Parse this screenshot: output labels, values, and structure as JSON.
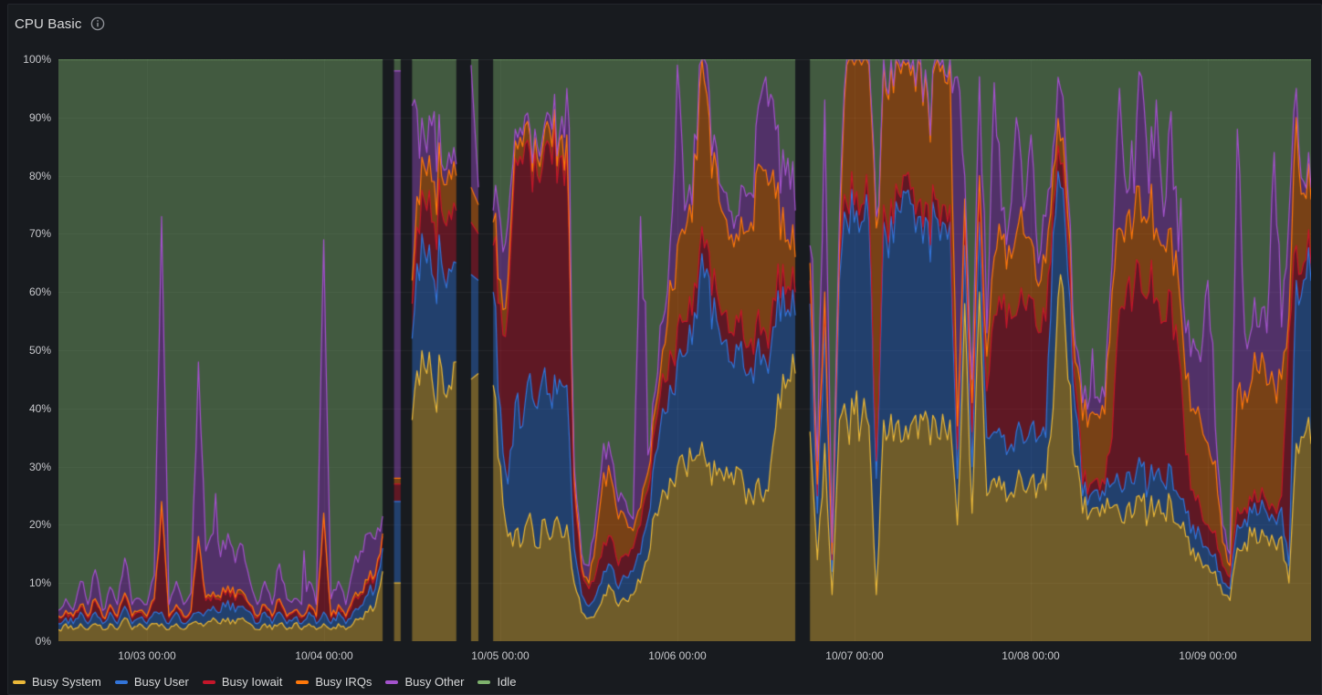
{
  "panel": {
    "title": "CPU Basic"
  },
  "colors": {
    "page_bg": "#111217",
    "panel_bg": "#181B1F",
    "panel_border": "#23262C",
    "plot_bg": "#181B1F",
    "grid": "rgba(204,204,220,0.07)",
    "axis_text": "#C7C8CC",
    "title_text": "#D8D9DA",
    "icon": "#8E9197"
  },
  "axes": {
    "y_ticks": [
      "0%",
      "10%",
      "20%",
      "30%",
      "40%",
      "50%",
      "60%",
      "70%",
      "80%",
      "90%",
      "100%"
    ],
    "x_ticks": [
      "10/03 00:00",
      "10/04 00:00",
      "10/05 00:00",
      "10/06 00:00",
      "10/07 00:00",
      "10/08 00:00",
      "10/09 00:00"
    ]
  },
  "legend": [
    {
      "label": "Busy System",
      "color": "#EAB839"
    },
    {
      "label": "Busy User",
      "color": "#3274D9"
    },
    {
      "label": "Busy Iowait",
      "color": "#C4162A"
    },
    {
      "label": "Busy IRQs",
      "color": "#FF780A"
    },
    {
      "label": "Busy Other",
      "color": "#A352CC"
    },
    {
      "label": "Idle",
      "color": "#7EB26D"
    }
  ],
  "chart_data": {
    "type": "area",
    "stacked": true,
    "unit": "percent",
    "ylim": [
      0,
      100
    ],
    "grid": true,
    "legend_position": "bottom",
    "x_unit": "hours_from_left_edge",
    "x_range": [
      0,
      170
    ],
    "x_tick_hours": [
      12,
      36,
      60,
      84,
      108,
      132,
      156
    ],
    "x_tick_labels": [
      "10/03 00:00",
      "10/04 00:00",
      "10/05 00:00",
      "10/06 00:00",
      "10/07 00:00",
      "10/08 00:00",
      "10/09 00:00"
    ],
    "series_names": [
      "Busy System",
      "Busy User",
      "Busy Iowait",
      "Busy IRQs",
      "Busy Other"
    ],
    "idle_series": {
      "name": "Idle",
      "mode": "remainder",
      "total": 100
    },
    "fill_opacity": 0.42,
    "line_width": 1.2,
    "gaps_note": "null rows are no-data gaps (dark vertical stripes)",
    "texture": {
      "subsamples": 3,
      "jitter_rel": 0.24,
      "jitter_abs": 0.7,
      "purple_spike_chance": 0.06
    },
    "points": [
      [
        2,
        1,
        1,
        0.3,
        1
      ],
      [
        3,
        1,
        1,
        0.3,
        2
      ],
      [
        2,
        1,
        1,
        0.3,
        1
      ],
      [
        3,
        2,
        1,
        0.3,
        4
      ],
      [
        2,
        1,
        1,
        0.3,
        2
      ],
      [
        3,
        2,
        2,
        0.3,
        5
      ],
      [
        2,
        1,
        1,
        0.3,
        1
      ],
      [
        3,
        2,
        1,
        0.3,
        3
      ],
      [
        2,
        1,
        1,
        0.3,
        2
      ],
      [
        4,
        2,
        2,
        0.3,
        6
      ],
      [
        2,
        1,
        1,
        0.3,
        2
      ],
      [
        3,
        1,
        1,
        0.3,
        2
      ],
      [
        2,
        1,
        1,
        0.3,
        2
      ],
      [
        3,
        2,
        2,
        0.3,
        4
      ],
      [
        3,
        2,
        18,
        1,
        49
      ],
      [
        2,
        1,
        1,
        0.3,
        2
      ],
      [
        3,
        2,
        1,
        0.3,
        4
      ],
      [
        2,
        1,
        1,
        0.3,
        2
      ],
      [
        3,
        1,
        1,
        0.3,
        3
      ],
      [
        3,
        2,
        12,
        1,
        30
      ],
      [
        3,
        2,
        2,
        0.5,
        8
      ],
      [
        4,
        2,
        2,
        0.5,
        10
      ],
      [
        3,
        2,
        2,
        0.5,
        7
      ],
      [
        4,
        3,
        2,
        0.5,
        9
      ],
      [
        3,
        2,
        2,
        0.5,
        6
      ],
      [
        4,
        2,
        2,
        0.5,
        8
      ],
      [
        3,
        2,
        1,
        0.3,
        4
      ],
      [
        2,
        1,
        1,
        0.3,
        2
      ],
      [
        3,
        2,
        1,
        0.3,
        4
      ],
      [
        2,
        1,
        1,
        0.3,
        2
      ],
      [
        3,
        2,
        2,
        0.3,
        6
      ],
      [
        2,
        1,
        1,
        0.3,
        3
      ],
      [
        3,
        1,
        1,
        0.3,
        2
      ],
      [
        2,
        1,
        1,
        0.3,
        2
      ],
      [
        3,
        2,
        1,
        0.3,
        4
      ],
      [
        2,
        1,
        1,
        0.3,
        2
      ],
      [
        3,
        2,
        16,
        1,
        47
      ],
      [
        2,
        1,
        1,
        0.3,
        3
      ],
      [
        3,
        2,
        1,
        0.3,
        4
      ],
      [
        2,
        1,
        1,
        0.3,
        2
      ],
      [
        3,
        2,
        2,
        0.5,
        5
      ],
      [
        4,
        2,
        2,
        0.5,
        7
      ],
      [
        5,
        3,
        2,
        0.5,
        8
      ],
      [
        6,
        3,
        2,
        0.5,
        6
      ],
      [
        12,
        4,
        2,
        0.5,
        3
      ],
      null,
      [
        10,
        14,
        3,
        1,
        70
      ],
      null,
      [
        38,
        14,
        6,
        4,
        30
      ],
      [
        44,
        18,
        8,
        5,
        8
      ],
      [
        46,
        19,
        9,
        6,
        4
      ],
      [
        42,
        20,
        10,
        7,
        12
      ],
      [
        47,
        18,
        9,
        6,
        2
      ],
      [
        44,
        20,
        10,
        7,
        3
      ],
      [
        48,
        17,
        9,
        6,
        2
      ],
      null,
      [
        45,
        18,
        9,
        6,
        21
      ],
      [
        46,
        16,
        8,
        5,
        3
      ],
      null,
      [
        44,
        16,
        8,
        4,
        2
      ],
      [
        30,
        10,
        18,
        4,
        10
      ],
      [
        18,
        9,
        30,
        5,
        10
      ],
      [
        19,
        22,
        42,
        3,
        2
      ],
      [
        17,
        20,
        45,
        3,
        2
      ],
      [
        22,
        24,
        38,
        3,
        1
      ],
      [
        16,
        24,
        40,
        3,
        2
      ],
      [
        21,
        26,
        38,
        3,
        1
      ],
      [
        18,
        22,
        42,
        3,
        3
      ],
      [
        20,
        25,
        38,
        3,
        1
      ],
      [
        20,
        24,
        40,
        3,
        8
      ],
      [
        10,
        6,
        10,
        2,
        2
      ],
      [
        5,
        3,
        4,
        1,
        2
      ],
      [
        4,
        2,
        3,
        1,
        3
      ],
      [
        5,
        3,
        4,
        6,
        4
      ],
      [
        8,
        4,
        5,
        12,
        5
      ],
      [
        9,
        4,
        5,
        10,
        4
      ],
      [
        6,
        3,
        4,
        8,
        3
      ],
      [
        7,
        4,
        4,
        6,
        3
      ],
      [
        8,
        4,
        4,
        3,
        2
      ],
      [
        10,
        5,
        5,
        3,
        50
      ],
      [
        14,
        7,
        5,
        3,
        3
      ],
      [
        22,
        10,
        5,
        3,
        3
      ],
      [
        26,
        14,
        6,
        4,
        5
      ],
      [
        28,
        16,
        6,
        12,
        6
      ],
      [
        30,
        18,
        6,
        14,
        31
      ],
      [
        30,
        19,
        6,
        15,
        4
      ],
      [
        31,
        20,
        5,
        16,
        3
      ],
      [
        32,
        30,
        5,
        28,
        4
      ],
      [
        30,
        34,
        5,
        25,
        5
      ],
      [
        31,
        28,
        5,
        20,
        3
      ],
      [
        29,
        22,
        5,
        18,
        4
      ],
      [
        28,
        20,
        5,
        16,
        5
      ],
      [
        30,
        21,
        5,
        14,
        3
      ],
      [
        27,
        20,
        5,
        18,
        8
      ],
      [
        25,
        22,
        5,
        20,
        5
      ],
      [
        28,
        24,
        5,
        25,
        10
      ],
      [
        26,
        22,
        5,
        28,
        16
      ],
      [
        34,
        20,
        5,
        22,
        12
      ],
      [
        40,
        15,
        4,
        10,
        8
      ],
      [
        45,
        12,
        4,
        8,
        14
      ],
      [
        46,
        10,
        4,
        6,
        8
      ],
      null,
      [
        36,
        22,
        4,
        3,
        3
      ],
      [
        14,
        8,
        3,
        2,
        4
      ],
      [
        34,
        20,
        4,
        2,
        33
      ],
      [
        8,
        4,
        2,
        1,
        2
      ],
      [
        38,
        24,
        4,
        2,
        5
      ],
      [
        38,
        34,
        3,
        24,
        1
      ],
      [
        39,
        33,
        3,
        24,
        1
      ],
      [
        38,
        34,
        3,
        24,
        1
      ],
      [
        37,
        35,
        3,
        24,
        1
      ],
      [
        8,
        20,
        3,
        40,
        2
      ],
      [
        38,
        34,
        3,
        24,
        1
      ],
      [
        39,
        34,
        3,
        23,
        1
      ],
      [
        38,
        36,
        3,
        22,
        1
      ],
      [
        37,
        40,
        3,
        19,
        1
      ],
      [
        38,
        37,
        3,
        21,
        1
      ],
      [
        39,
        34,
        3,
        23,
        1
      ],
      [
        38,
        34,
        3,
        18,
        1
      ],
      [
        38,
        35,
        3,
        23,
        1
      ],
      [
        39,
        33,
        3,
        24,
        1
      ],
      [
        38,
        34,
        3,
        24,
        1
      ],
      [
        20,
        8,
        5,
        4,
        60
      ],
      [
        58,
        10,
        5,
        3,
        4
      ],
      [
        22,
        8,
        6,
        5,
        4
      ],
      [
        60,
        12,
        5,
        3,
        17
      ],
      [
        25,
        10,
        8,
        6,
        4
      ],
      [
        28,
        8,
        20,
        10,
        30
      ],
      [
        26,
        9,
        22,
        12,
        5
      ],
      [
        25,
        8,
        25,
        10,
        4
      ],
      [
        27,
        9,
        20,
        14,
        20
      ],
      [
        26,
        8,
        24,
        12,
        4
      ],
      [
        28,
        9,
        22,
        10,
        18
      ],
      [
        27,
        8,
        18,
        8,
        4
      ],
      [
        26,
        9,
        20,
        10,
        8
      ],
      [
        40,
        30,
        5,
        6,
        4
      ],
      [
        63,
        15,
        4,
        4,
        9
      ],
      [
        45,
        18,
        5,
        5,
        4
      ],
      [
        30,
        10,
        4,
        4,
        3
      ],
      [
        22,
        3,
        2,
        11,
        3
      ],
      [
        22,
        3,
        2,
        12,
        3
      ],
      [
        23,
        3,
        2,
        11,
        3
      ],
      [
        22,
        3,
        2,
        12,
        3
      ],
      [
        23,
        4,
        8,
        25,
        5
      ],
      [
        22,
        5,
        30,
        14,
        24
      ],
      [
        23,
        6,
        32,
        12,
        4
      ],
      [
        22,
        5,
        34,
        12,
        4
      ],
      [
        24,
        6,
        30,
        12,
        25
      ],
      [
        22,
        5,
        33,
        13,
        4
      ],
      [
        23,
        6,
        30,
        12,
        22
      ],
      [
        22,
        5,
        28,
        13,
        5
      ],
      [
        24,
        6,
        30,
        11,
        20
      ],
      [
        20,
        5,
        25,
        12,
        5
      ],
      [
        18,
        4,
        10,
        13,
        8
      ],
      [
        16,
        4,
        6,
        14,
        12
      ],
      [
        14,
        4,
        5,
        15,
        10
      ],
      [
        13,
        3,
        4,
        14,
        28
      ],
      [
        12,
        3,
        4,
        12,
        6
      ],
      [
        8,
        2,
        3,
        4,
        3
      ],
      [
        7,
        2,
        2,
        2,
        2
      ],
      [
        16,
        4,
        3,
        20,
        45
      ],
      [
        17,
        4,
        2,
        20,
        10
      ],
      [
        18,
        4,
        2,
        21,
        9
      ],
      [
        17,
        5,
        2,
        22,
        8
      ],
      [
        18,
        4,
        2,
        20,
        9
      ],
      [
        17,
        4,
        2,
        21,
        40
      ],
      [
        18,
        5,
        2,
        20,
        9
      ],
      [
        10,
        3,
        40,
        3,
        17
      ],
      [
        34,
        28,
        6,
        22,
        5
      ],
      [
        35,
        27,
        3,
        12,
        2
      ],
      [
        34,
        28,
        3,
        11,
        2
      ],
      [
        35,
        27,
        3,
        11,
        2
      ]
    ]
  }
}
